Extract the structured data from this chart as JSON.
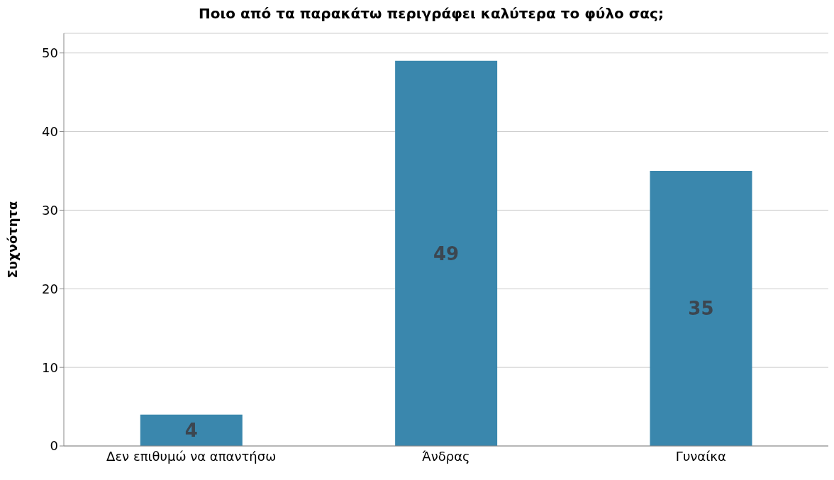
{
  "chart_data": {
    "type": "bar",
    "title": "Ποιο από τα παρακάτω περιγράφει καλύτερα το φύλο σας;",
    "ylabel": "Συχνότητα",
    "categories": [
      "Δεν επιθυμώ να απαντήσω",
      "Άνδρας",
      "Γυναίκα"
    ],
    "values": [
      4,
      49,
      35
    ],
    "color": "#3a87ad",
    "ylim": [
      0,
      52.5
    ],
    "yticks": [
      0,
      10,
      20,
      30,
      40,
      50
    ],
    "grid": "y",
    "data_labels": true
  }
}
